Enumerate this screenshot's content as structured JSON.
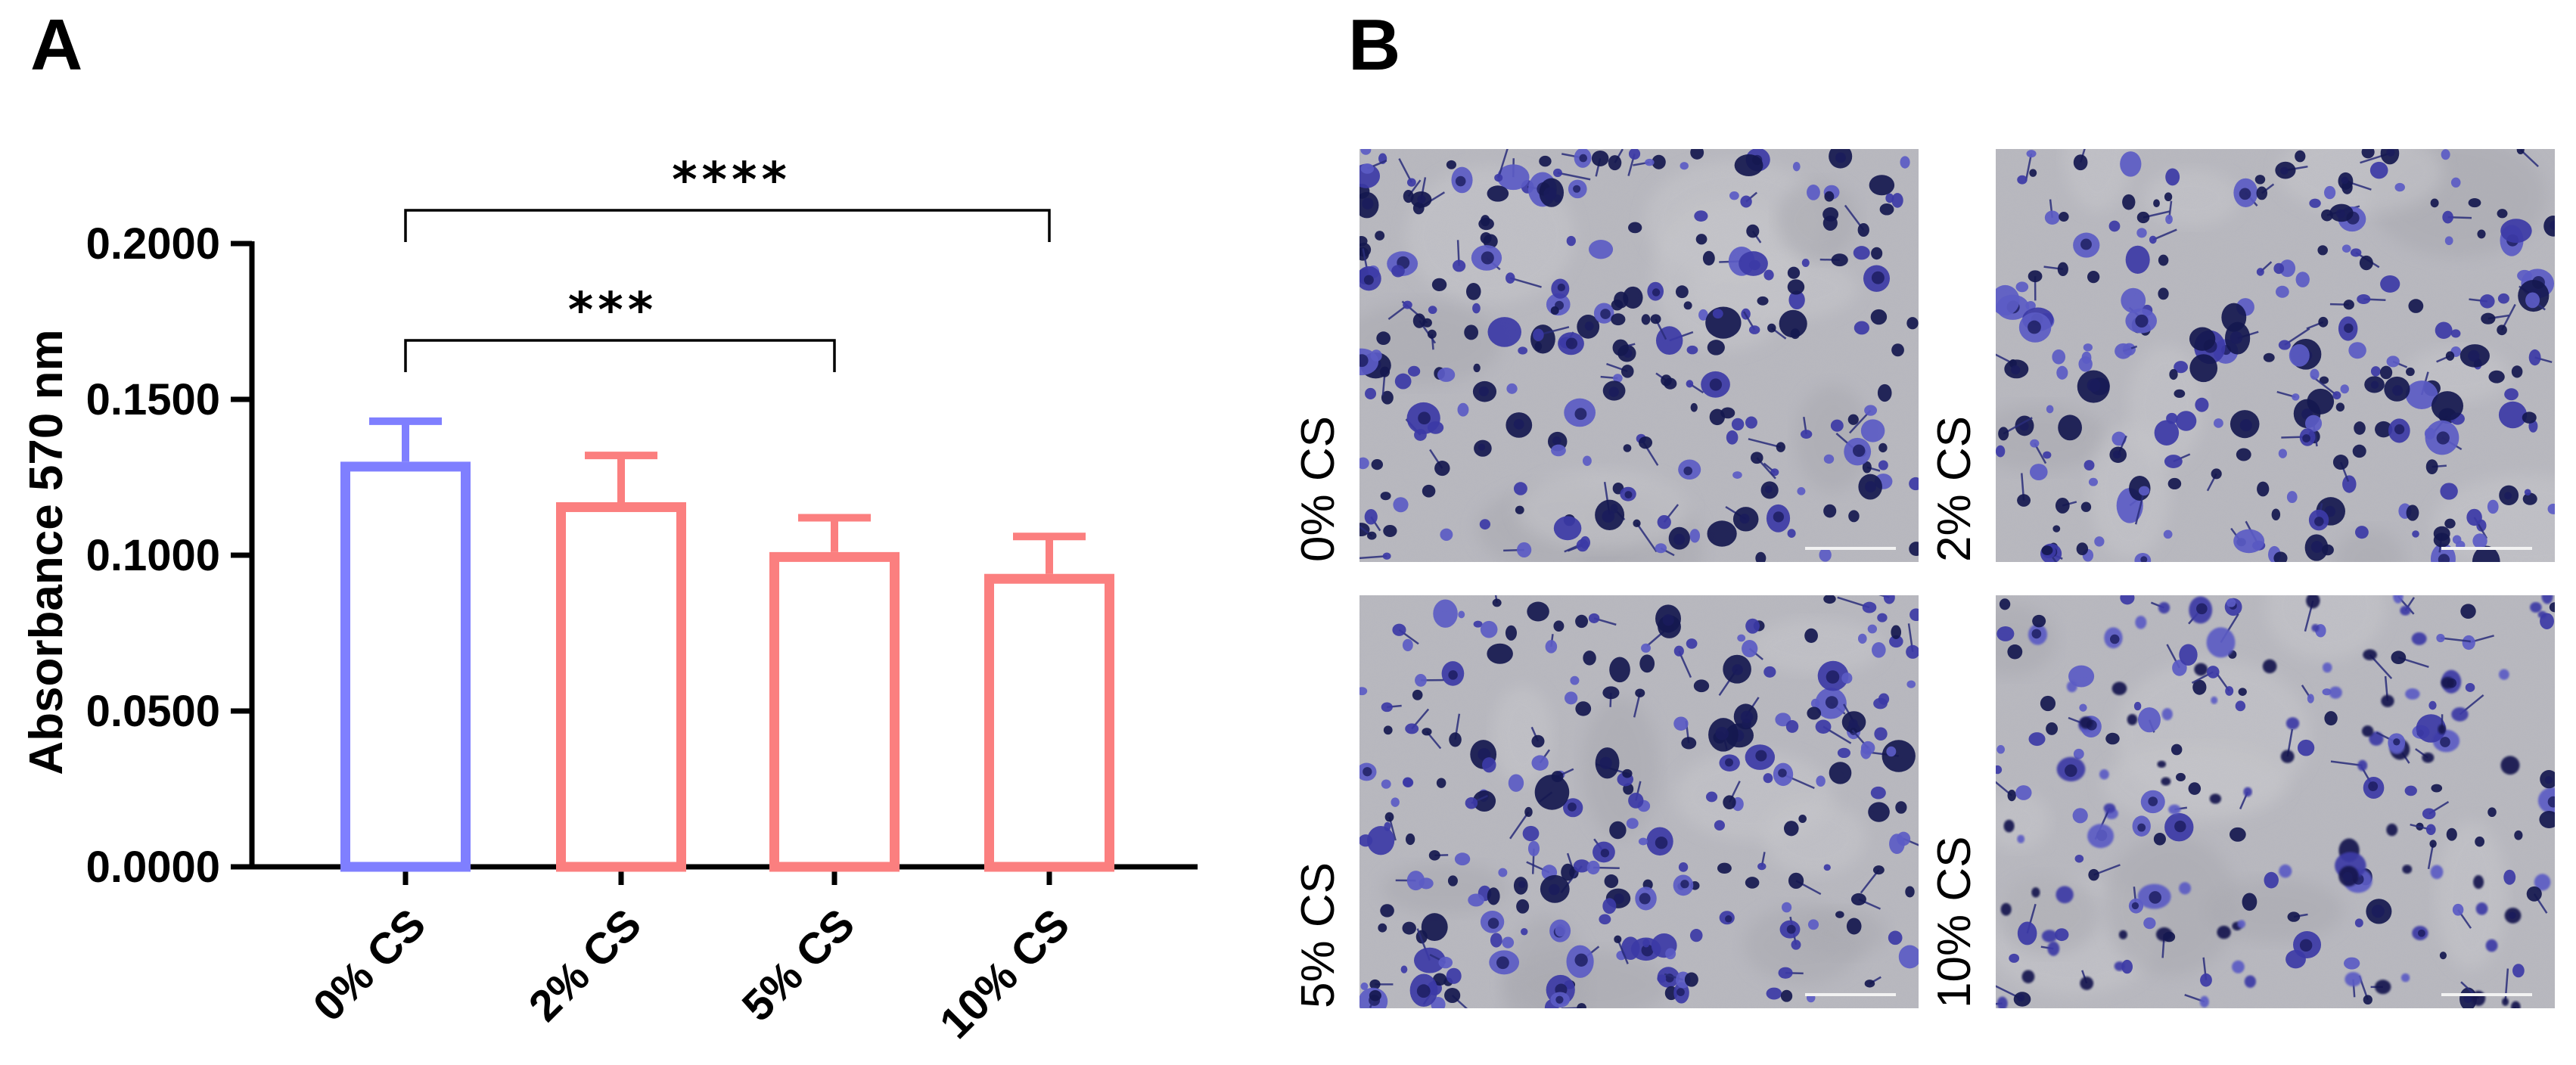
{
  "panels": {
    "a_label": "A",
    "b_label": "B"
  },
  "chart_data": {
    "type": "bar",
    "title": "",
    "ylabel": "Absorbance 570 nm",
    "xlabel": "",
    "categories": [
      "0% CS",
      "2% CS",
      "5% CS",
      "10% CS"
    ],
    "values": [
      0.13,
      0.117,
      0.101,
      0.094
    ],
    "errors": [
      0.013,
      0.015,
      0.011,
      0.012
    ],
    "colors": [
      "#7f7fff",
      "#fb7f7f",
      "#fb7f7f",
      "#fb7f7f"
    ],
    "ylim": [
      0,
      0.2
    ],
    "yticks": [
      0.0,
      0.05,
      0.1,
      0.15,
      0.2
    ],
    "ytick_labels": [
      "0.0000",
      "0.0500",
      "0.1000",
      "0.1500",
      "0.2000"
    ],
    "grid": false,
    "significance": [
      {
        "from": "0% CS",
        "to": "5% CS",
        "label": "***"
      },
      {
        "from": "0% CS",
        "to": "10% CS",
        "label": "****"
      }
    ]
  },
  "micrographs": {
    "labels": [
      "0% CS",
      "2% CS",
      "5% CS",
      "10% CS"
    ],
    "stain_color": "#3c3aa6",
    "background_color": "#b8b8bf"
  }
}
